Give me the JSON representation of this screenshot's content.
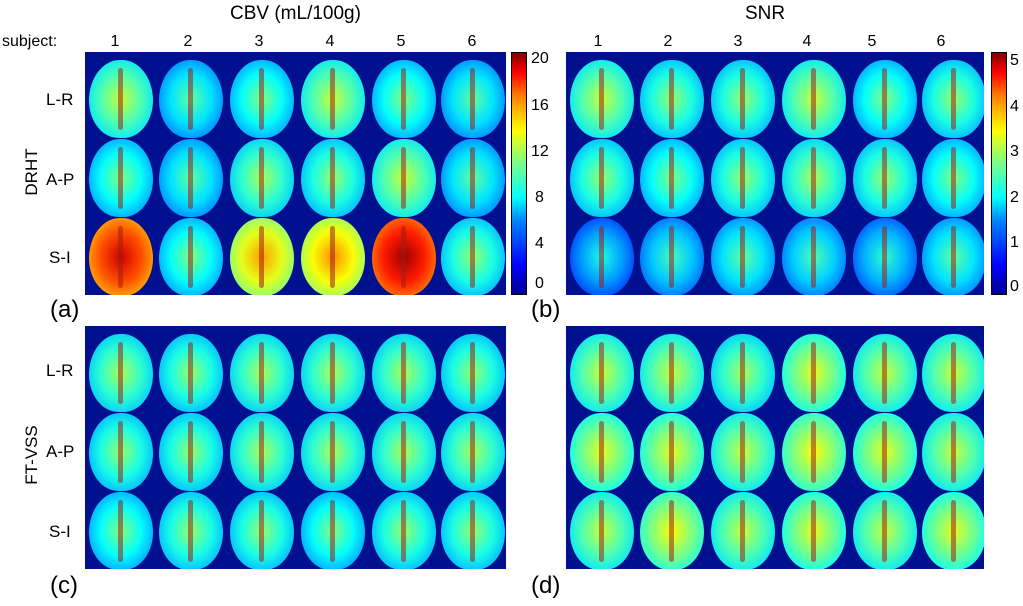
{
  "titles": {
    "left": "CBV (mL/100g)",
    "right": "SNR"
  },
  "subject_label": "subject:",
  "subjects": [
    "1",
    "2",
    "3",
    "4",
    "5",
    "6"
  ],
  "groups": {
    "top": "DRHT",
    "bottom": "FT-VSS"
  },
  "rows": [
    "L-R",
    "A-P",
    "S-I"
  ],
  "panel_letters": [
    "(a)",
    "(b)",
    "(c)",
    "(d)"
  ],
  "colorbars": {
    "cbv": {
      "ticks": [
        "20",
        "16",
        "12",
        "8",
        "4",
        "0"
      ],
      "min": 0,
      "max": 21
    },
    "snr": {
      "ticks": [
        "5",
        "4",
        "3",
        "2",
        "1",
        "0"
      ],
      "min": 0,
      "max": 5.2
    }
  },
  "colors": {
    "background": "#00108f",
    "colormap": "jet"
  },
  "brain_fill": {
    "a": [
      [
        0.45,
        0.35,
        0.38,
        0.45,
        0.38,
        0.35
      ],
      [
        0.38,
        0.35,
        0.42,
        0.4,
        0.45,
        0.35
      ],
      [
        0.8,
        0.38,
        0.6,
        0.62,
        0.85,
        0.4
      ]
    ],
    "b": [
      [
        0.45,
        0.4,
        0.4,
        0.45,
        0.38,
        0.4
      ],
      [
        0.4,
        0.38,
        0.4,
        0.42,
        0.4,
        0.38
      ],
      [
        0.28,
        0.32,
        0.35,
        0.33,
        0.3,
        0.35
      ]
    ],
    "c": [
      [
        0.42,
        0.4,
        0.42,
        0.42,
        0.42,
        0.4
      ],
      [
        0.4,
        0.4,
        0.42,
        0.42,
        0.42,
        0.42
      ],
      [
        0.38,
        0.4,
        0.4,
        0.38,
        0.4,
        0.4
      ]
    ],
    "d": [
      [
        0.45,
        0.45,
        0.42,
        0.48,
        0.45,
        0.45
      ],
      [
        0.48,
        0.48,
        0.45,
        0.5,
        0.48,
        0.45
      ],
      [
        0.45,
        0.5,
        0.45,
        0.48,
        0.45,
        0.48
      ]
    ]
  }
}
